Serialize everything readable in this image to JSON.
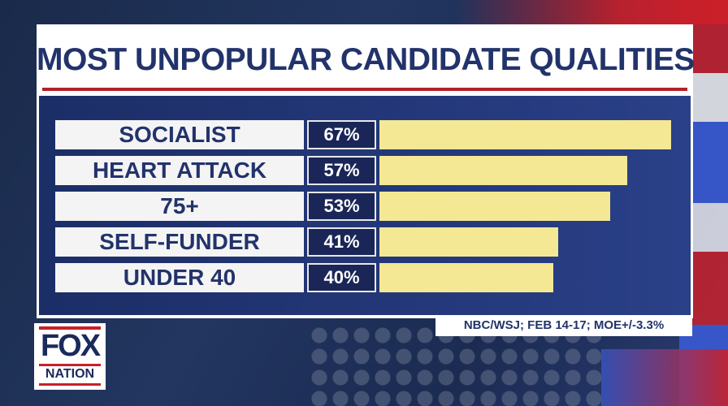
{
  "chart_data": {
    "type": "bar",
    "title": "MOST UNPOPULAR CANDIDATE QUALITIES",
    "categories": [
      "SOCIALIST",
      "HEART ATTACK",
      "75+",
      "SELF-FUNDER",
      "UNDER 40"
    ],
    "values": [
      67,
      57,
      53,
      41,
      40
    ],
    "value_labels": [
      "67%",
      "57%",
      "53%",
      "41%",
      "40%"
    ],
    "unit": "%",
    "xlim": [
      0,
      67
    ],
    "orientation": "horizontal",
    "grid": false,
    "legend": "none",
    "bar_color": "#f5e894",
    "source": "NBC/WSJ; FEB 14-17; MOE+/-3.3%"
  },
  "logo": {
    "top": "FOX",
    "bottom": "NATION"
  },
  "colors": {
    "navy": "#22336b",
    "accent_red": "#b0222a",
    "panel": "#1c2e66"
  }
}
